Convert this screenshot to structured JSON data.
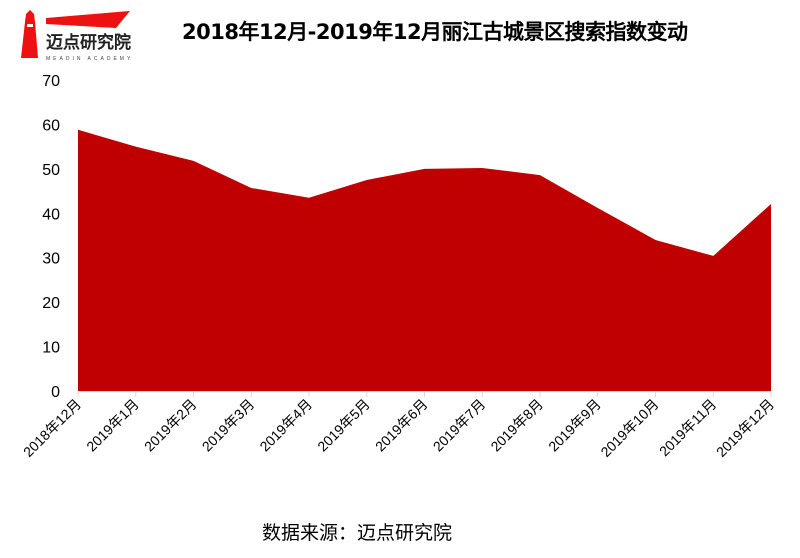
{
  "title": "2018年12月-2019年12月丽江古城景区搜索指数变动",
  "source": "数据来源：迈点研究院",
  "logo": {
    "text": "迈点研究院",
    "subtext": "MEADIN ACADEMY"
  },
  "colors": {
    "area": "#c00000",
    "brand": "#ee1111"
  },
  "chart_data": {
    "type": "area",
    "title": "2018年12月-2019年12月丽江古城景区搜索指数变动",
    "categories": [
      "2018年12月",
      "2019年1月",
      "2019年2月",
      "2019年3月",
      "2019年4月",
      "2019年5月",
      "2019年6月",
      "2019年7月",
      "2019年8月",
      "2019年9月",
      "2019年10月",
      "2019年11月",
      "2019年12月"
    ],
    "values": [
      58.8,
      55.0,
      51.8,
      45.7,
      43.5,
      47.5,
      50.0,
      50.2,
      48.6,
      41.2,
      34.0,
      30.4,
      42.1
    ],
    "ylim": [
      0,
      70
    ],
    "yticks": [
      0,
      10,
      20,
      30,
      40,
      50,
      60,
      70
    ],
    "grid": false,
    "legend": "none",
    "xlabel": "",
    "ylabel": ""
  }
}
